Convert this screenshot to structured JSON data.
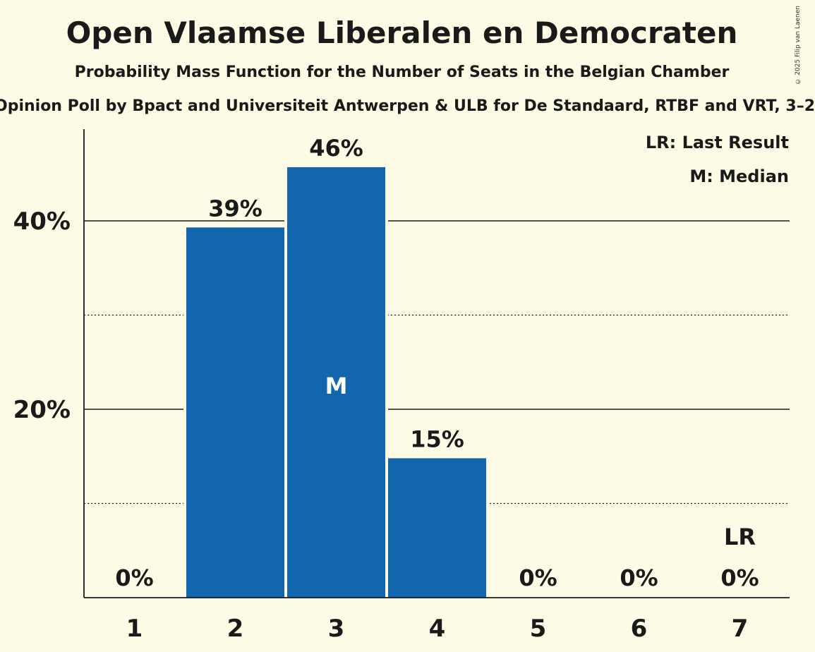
{
  "title": "Open Vlaamse Liberalen en Democraten",
  "subtitle": "Probability Mass Function for the Number of Seats in the Belgian Chamber",
  "poll_line": "Opinion Poll by Bpact and Universiteit Antwerpen & ULB for De Standaard, RTBF and VRT, 3–2",
  "copyright": "© 2025 Filip van Laenen",
  "colors": {
    "background": "#fdfbe6",
    "bar": "#1166ae",
    "text": "#1a1a1a"
  },
  "chart_data": {
    "type": "bar",
    "categories": [
      "1",
      "2",
      "3",
      "4",
      "5",
      "6",
      "7"
    ],
    "values": [
      0,
      39.3,
      45.7,
      14.8,
      0,
      0,
      0
    ],
    "data_labels": [
      "0%",
      "39%",
      "46%",
      "15%",
      "0%",
      "0%",
      "0%"
    ],
    "y_ticks": [
      {
        "value": 20,
        "label": "20%"
      },
      {
        "value": 40,
        "label": "40%"
      }
    ],
    "ylim": [
      0,
      50
    ],
    "grid": "solid lines at 20% and 40%, dotted lines at 10% and 30%",
    "median_category": "3",
    "median_marker": "M",
    "last_result_category": "7",
    "last_result_marker": "LR",
    "legend": [
      "LR: Last Result",
      "M: Median"
    ],
    "legend_placement": "top-right"
  }
}
